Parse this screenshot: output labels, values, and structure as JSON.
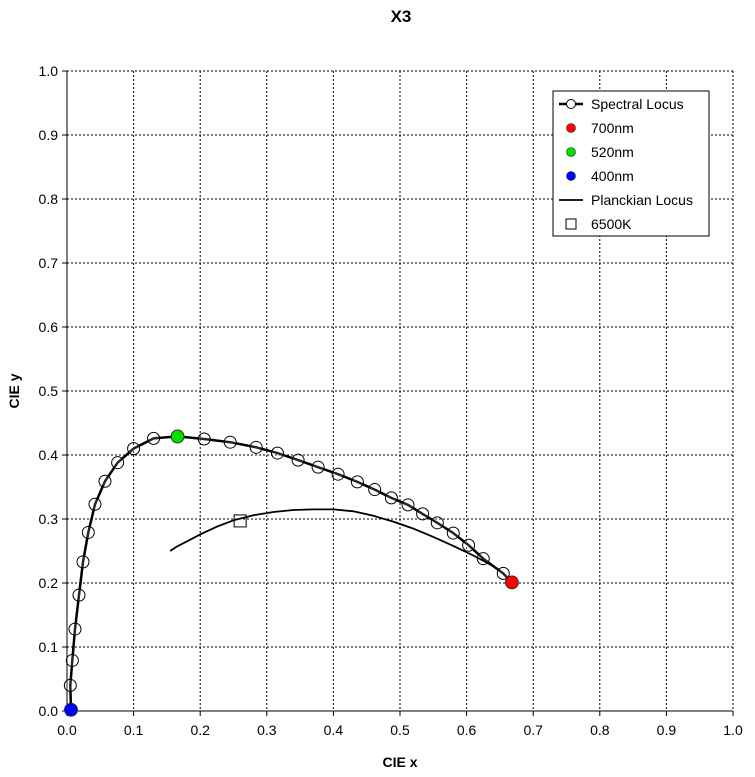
{
  "chart_data": {
    "type": "scatter",
    "title": "X3",
    "xlabel": "CIE x",
    "ylabel": "CIE y",
    "xlim": [
      0,
      1
    ],
    "ylim": [
      0,
      1
    ],
    "xticks": [
      "0.0",
      "0.1",
      "0.2",
      "0.3",
      "0.4",
      "0.5",
      "0.6",
      "0.7",
      "0.8",
      "0.9",
      "1.0"
    ],
    "yticks": [
      "0.0",
      "0.1",
      "0.2",
      "0.3",
      "0.4",
      "0.5",
      "0.6",
      "0.7",
      "0.8",
      "0.9",
      "1.0"
    ],
    "grid": true,
    "legend_position": "top-right",
    "series": [
      {
        "name": "Spectral Locus",
        "kind": "line-markers",
        "marker": "open-circle",
        "color": "#000000",
        "points": [
          [
            0.006,
            0.002
          ],
          [
            0.005,
            0.04
          ],
          [
            0.008,
            0.079
          ],
          [
            0.012,
            0.128
          ],
          [
            0.018,
            0.181
          ],
          [
            0.024,
            0.233
          ],
          [
            0.032,
            0.279
          ],
          [
            0.042,
            0.323
          ],
          [
            0.057,
            0.359
          ],
          [
            0.076,
            0.388
          ],
          [
            0.1,
            0.41
          ],
          [
            0.13,
            0.426
          ],
          [
            0.166,
            0.429
          ],
          [
            0.206,
            0.425
          ],
          [
            0.245,
            0.42
          ],
          [
            0.284,
            0.412
          ],
          [
            0.316,
            0.403
          ],
          [
            0.347,
            0.392
          ],
          [
            0.377,
            0.381
          ],
          [
            0.407,
            0.37
          ],
          [
            0.436,
            0.358
          ],
          [
            0.462,
            0.346
          ],
          [
            0.487,
            0.333
          ],
          [
            0.512,
            0.322
          ],
          [
            0.534,
            0.308
          ],
          [
            0.556,
            0.294
          ],
          [
            0.58,
            0.278
          ],
          [
            0.603,
            0.259
          ],
          [
            0.625,
            0.238
          ],
          [
            0.655,
            0.215
          ],
          [
            0.668,
            0.201
          ]
        ]
      },
      {
        "name": "700nm",
        "kind": "marker",
        "color": "#ff0000",
        "points": [
          [
            0.668,
            0.201
          ]
        ]
      },
      {
        "name": "520nm",
        "kind": "marker",
        "color": "#00dd00",
        "points": [
          [
            0.166,
            0.429
          ]
        ]
      },
      {
        "name": "400nm",
        "kind": "marker",
        "color": "#0000ff",
        "points": [
          [
            0.006,
            0.002
          ]
        ]
      },
      {
        "name": "Planckian Locus",
        "kind": "line",
        "color": "#000000",
        "points": [
          [
            0.155,
            0.25
          ],
          [
            0.165,
            0.257
          ],
          [
            0.18,
            0.265
          ],
          [
            0.2,
            0.276
          ],
          [
            0.225,
            0.288
          ],
          [
            0.25,
            0.298
          ],
          [
            0.28,
            0.306
          ],
          [
            0.31,
            0.311
          ],
          [
            0.34,
            0.314
          ],
          [
            0.37,
            0.315
          ],
          [
            0.4,
            0.315
          ],
          [
            0.43,
            0.312
          ],
          [
            0.46,
            0.305
          ],
          [
            0.49,
            0.296
          ],
          [
            0.52,
            0.285
          ],
          [
            0.55,
            0.272
          ],
          [
            0.58,
            0.258
          ],
          [
            0.61,
            0.243
          ],
          [
            0.63,
            0.232
          ],
          [
            0.65,
            0.22
          ]
        ]
      },
      {
        "name": "6500K",
        "kind": "marker",
        "marker": "open-square",
        "color": "#000000",
        "points": [
          [
            0.26,
            0.297
          ]
        ]
      }
    ]
  }
}
